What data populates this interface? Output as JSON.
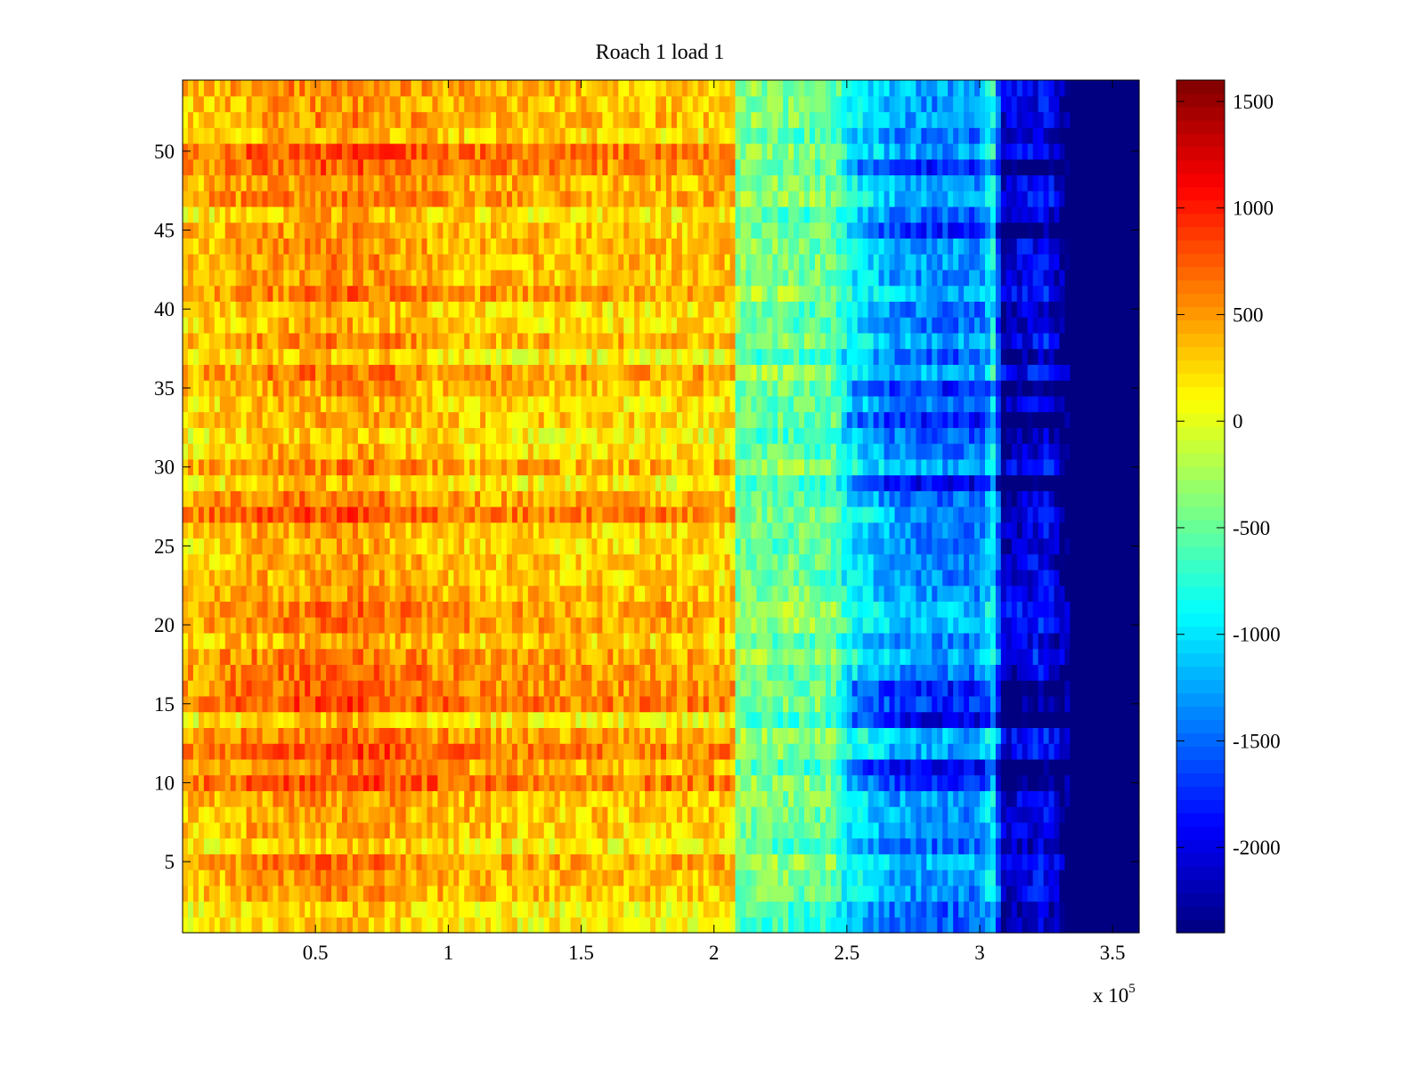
{
  "chart_data": {
    "type": "heatmap",
    "title": "Roach 1 load 1",
    "xlabel": "",
    "ylabel": "",
    "x_multiplier_label": {
      "base": "x 10",
      "exponent": "5"
    },
    "xlim": [
      0,
      360000
    ],
    "ylim": [
      0.5,
      54.5
    ],
    "x_ticks": [
      {
        "value": 50000,
        "label": "0.5"
      },
      {
        "value": 100000,
        "label": "1"
      },
      {
        "value": 150000,
        "label": "1.5"
      },
      {
        "value": 200000,
        "label": "2"
      },
      {
        "value": 250000,
        "label": "2.5"
      },
      {
        "value": 300000,
        "label": "3"
      },
      {
        "value": 350000,
        "label": "3.5"
      }
    ],
    "y_ticks": [
      {
        "value": 5,
        "label": "5"
      },
      {
        "value": 10,
        "label": "10"
      },
      {
        "value": 15,
        "label": "15"
      },
      {
        "value": 20,
        "label": "20"
      },
      {
        "value": 25,
        "label": "25"
      },
      {
        "value": 30,
        "label": "30"
      },
      {
        "value": 35,
        "label": "35"
      },
      {
        "value": 40,
        "label": "40"
      },
      {
        "value": 45,
        "label": "45"
      },
      {
        "value": 50,
        "label": "50"
      }
    ],
    "rows": 54,
    "colormap": "jet",
    "clim": [
      -2400,
      1600
    ],
    "colorbar_ticks": [
      {
        "value": 1500,
        "label": "1500"
      },
      {
        "value": 1000,
        "label": "1000"
      },
      {
        "value": 500,
        "label": "500"
      },
      {
        "value": 0,
        "label": "0"
      },
      {
        "value": -500,
        "label": "-500"
      },
      {
        "value": -1000,
        "label": "-1000"
      },
      {
        "value": -1500,
        "label": "-1500"
      },
      {
        "value": -2000,
        "label": "-2000"
      }
    ],
    "profile": [
      {
        "x": 0,
        "value": 250
      },
      {
        "x": 30000,
        "value": 420
      },
      {
        "x": 65000,
        "value": 520
      },
      {
        "x": 100000,
        "value": 340
      },
      {
        "x": 150000,
        "value": 280
      },
      {
        "x": 200000,
        "value": 260
      },
      {
        "x": 207000,
        "value": 240
      },
      {
        "x": 208000,
        "value": -420
      },
      {
        "x": 245000,
        "value": -520
      },
      {
        "x": 250000,
        "value": -900
      },
      {
        "x": 270000,
        "value": -1300
      },
      {
        "x": 300000,
        "value": -1400
      },
      {
        "x": 305000,
        "value": -900
      },
      {
        "x": 309000,
        "value": -2150
      },
      {
        "x": 325000,
        "value": -1900
      },
      {
        "x": 333000,
        "value": -2400
      },
      {
        "x": 360000,
        "value": -2400
      }
    ],
    "hot_rows": [
      10,
      11,
      12,
      15,
      16,
      17,
      27,
      28,
      49,
      50
    ],
    "cold_rows": [
      10,
      11,
      14,
      15,
      16,
      29,
      33,
      35,
      45,
      49
    ],
    "row_variation": 180,
    "cell_noise": 280
  }
}
